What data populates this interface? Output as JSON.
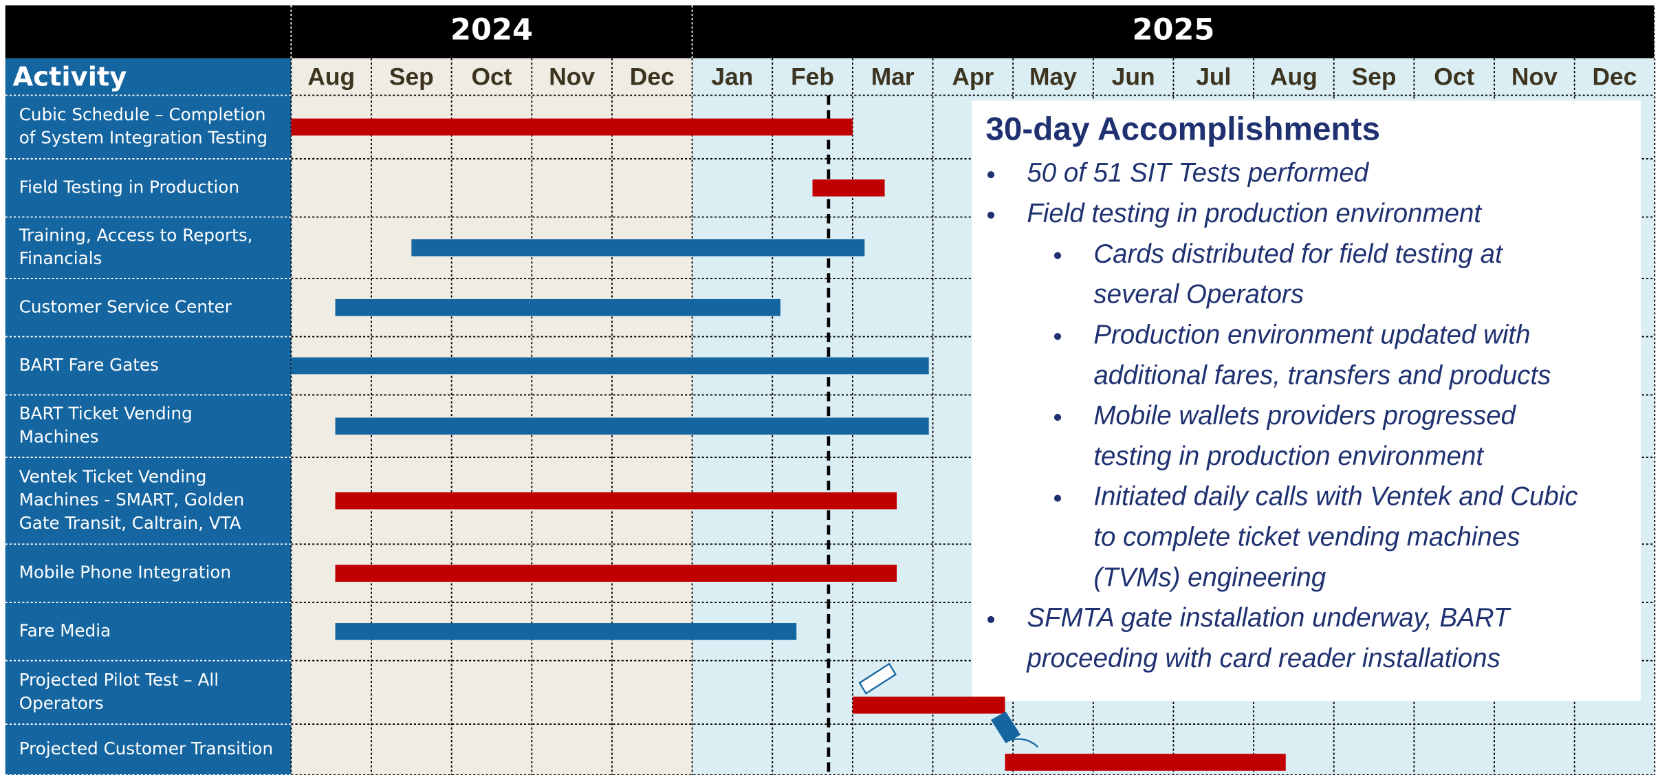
{
  "chart_data": {
    "type": "gantt",
    "activity_header": "Activity",
    "years": [
      {
        "label": "2024",
        "months": [
          "Aug",
          "Sep",
          "Oct",
          "Nov",
          "Dec"
        ]
      },
      {
        "label": "2025",
        "months": [
          "Jan",
          "Feb",
          "Mar",
          "Apr",
          "May",
          "Jun",
          "Jul",
          "Aug",
          "Sep",
          "Oct",
          "Nov",
          "Dec"
        ]
      }
    ],
    "tasks": [
      {
        "name": [
          "Cubic Schedule – Completion",
          "of System Integration Testing"
        ],
        "color": "#c00000",
        "start": 0,
        "end": 7.0
      },
      {
        "name": [
          "Field Testing in Production"
        ],
        "color": "#c00000",
        "start": 6.5,
        "end": 7.4
      },
      {
        "name": [
          "Training, Access to Reports,",
          "Financials"
        ],
        "color": "#1565a0",
        "start": 1.5,
        "end": 7.15
      },
      {
        "name": [
          "Customer Service Center"
        ],
        "color": "#1565a0",
        "start": 0.55,
        "end": 6.1
      },
      {
        "name": [
          "BART Fare Gates"
        ],
        "color": "#1565a0",
        "start": 0,
        "end": 7.95
      },
      {
        "name": [
          "BART Ticket Vending",
          "Machines"
        ],
        "color": "#1565a0",
        "start": 0.55,
        "end": 7.95
      },
      {
        "name": [
          "Ventek Ticket Vending",
          "Machines - SMART, Golden",
          "Gate Transit, Caltrain, VTA"
        ],
        "color": "#c00000",
        "start": 0.55,
        "end": 7.55
      },
      {
        "name": [
          "Mobile Phone Integration"
        ],
        "color": "#c00000",
        "start": 0.55,
        "end": 7.55
      },
      {
        "name": [
          "Fare Media"
        ],
        "color": "#1565a0",
        "start": 0.55,
        "end": 6.3
      },
      {
        "name": [
          "Projected Pilot Test – All",
          "Operators"
        ],
        "color": "#c00000",
        "start": 7.0,
        "end": 8.9
      },
      {
        "name": [
          "Projected Customer Transition"
        ],
        "color": "#c00000",
        "start": 8.9,
        "end": 12.4
      }
    ],
    "today": 6.7,
    "accomplishments": {
      "title": "30-day Accomplishments",
      "items": [
        {
          "text": [
            "50 of 51 SIT Tests performed"
          ]
        },
        {
          "text": [
            "Field testing in production environment"
          ],
          "subitems": [
            {
              "text": [
                "Cards distributed for field testing at",
                "several Operators"
              ]
            },
            {
              "text": [
                "Production environment updated with",
                "additional fares, transfers and products"
              ]
            },
            {
              "text": [
                "Mobile wallets providers progressed",
                "testing in production environment"
              ]
            },
            {
              "text": [
                "Initiated daily calls with Ventek and Cubic",
                "to complete ticket vending machines",
                "(TVMs) engineering"
              ]
            }
          ]
        },
        {
          "text": [
            "SFMTA gate installation underway, BART",
            "proceeding with card reader installations"
          ]
        }
      ]
    }
  }
}
